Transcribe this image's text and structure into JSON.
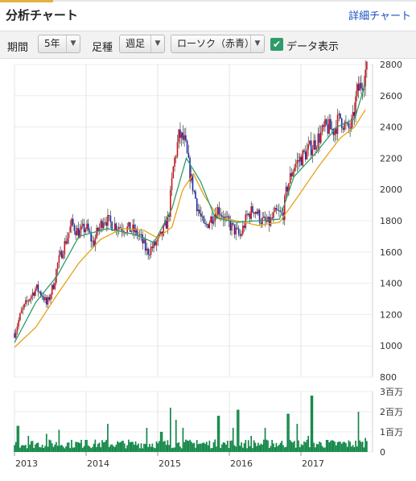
{
  "header": {
    "title": "分析チャート",
    "detail_link": "詳細チャート"
  },
  "toolbar": {
    "period_label": "期間",
    "period_value": "5年",
    "foot_label": "足種",
    "foot_value": "週足",
    "candle_value": "ローソク（赤青）",
    "data_display_label": "データ表示",
    "data_display_checked": true
  },
  "icons": {
    "dropdown": "chevron-down-icon",
    "checkbox": "checkmark-icon"
  },
  "colors": {
    "up_candle": "#d0131b",
    "down_candle": "#1a2ba8",
    "ma_short": "#2e9c6a",
    "ma_long": "#e3a31b",
    "volume": "#15884a"
  },
  "chart_data": [
    {
      "type": "candlestick",
      "title": "",
      "x_ticks": [
        "2013",
        "2014",
        "2015",
        "2016",
        "2017"
      ],
      "ylim": [
        800,
        2800
      ],
      "y_ticks": [
        "2800",
        "2600",
        "2400",
        "2200",
        "2000",
        "1800",
        "1600",
        "1400",
        "1200",
        "1000",
        "800"
      ],
      "close": [
        [
          2013.0,
          1080
        ],
        [
          2013.1,
          1220
        ],
        [
          2013.2,
          1300
        ],
        [
          2013.3,
          1370
        ],
        [
          2013.4,
          1320
        ],
        [
          2013.45,
          1260
        ],
        [
          2013.55,
          1400
        ],
        [
          2013.6,
          1520
        ],
        [
          2013.7,
          1650
        ],
        [
          2013.8,
          1780
        ],
        [
          2013.9,
          1720
        ],
        [
          2014.0,
          1760
        ],
        [
          2014.1,
          1650
        ],
        [
          2014.15,
          1720
        ],
        [
          2014.25,
          1820
        ],
        [
          2014.35,
          1780
        ],
        [
          2014.5,
          1760
        ],
        [
          2014.65,
          1740
        ],
        [
          2014.75,
          1700
        ],
        [
          2014.85,
          1600
        ],
        [
          2014.95,
          1640
        ],
        [
          2015.05,
          1700
        ],
        [
          2015.15,
          1820
        ],
        [
          2015.22,
          2150
        ],
        [
          2015.3,
          2350
        ],
        [
          2015.38,
          2300
        ],
        [
          2015.45,
          2100
        ],
        [
          2015.55,
          1900
        ],
        [
          2015.65,
          1750
        ],
        [
          2015.75,
          1820
        ],
        [
          2015.85,
          1880
        ],
        [
          2015.95,
          1800
        ],
        [
          2016.05,
          1750
        ],
        [
          2016.15,
          1700
        ],
        [
          2016.25,
          1830
        ],
        [
          2016.35,
          1880
        ],
        [
          2016.45,
          1800
        ],
        [
          2016.55,
          1780
        ],
        [
          2016.65,
          1850
        ],
        [
          2016.75,
          1840
        ],
        [
          2016.8,
          2000
        ],
        [
          2016.9,
          2150
        ],
        [
          2017.0,
          2200
        ],
        [
          2017.1,
          2250
        ],
        [
          2017.2,
          2300
        ],
        [
          2017.35,
          2400
        ],
        [
          2017.45,
          2380
        ],
        [
          2017.55,
          2460
        ],
        [
          2017.65,
          2380
        ],
        [
          2017.72,
          2420
        ],
        [
          2017.78,
          2620
        ],
        [
          2017.85,
          2680
        ],
        [
          2017.9,
          2760
        ]
      ],
      "ma_short": [
        [
          2013.0,
          1020
        ],
        [
          2013.3,
          1280
        ],
        [
          2013.6,
          1450
        ],
        [
          2013.9,
          1700
        ],
        [
          2014.3,
          1750
        ],
        [
          2014.7,
          1710
        ],
        [
          2014.95,
          1660
        ],
        [
          2015.2,
          1880
        ],
        [
          2015.4,
          2200
        ],
        [
          2015.6,
          2050
        ],
        [
          2015.8,
          1820
        ],
        [
          2016.1,
          1790
        ],
        [
          2016.4,
          1800
        ],
        [
          2016.7,
          1810
        ],
        [
          2016.9,
          2080
        ],
        [
          2017.2,
          2230
        ],
        [
          2017.5,
          2400
        ],
        [
          2017.75,
          2450
        ],
        [
          2017.9,
          2680
        ]
      ],
      "ma_long": [
        [
          2013.0,
          990
        ],
        [
          2013.3,
          1120
        ],
        [
          2013.6,
          1330
        ],
        [
          2013.9,
          1530
        ],
        [
          2014.2,
          1680
        ],
        [
          2014.5,
          1750
        ],
        [
          2014.8,
          1740
        ],
        [
          2015.0,
          1690
        ],
        [
          2015.2,
          1760
        ],
        [
          2015.35,
          2000
        ],
        [
          2015.5,
          2100
        ],
        [
          2015.65,
          1960
        ],
        [
          2015.85,
          1820
        ],
        [
          2016.1,
          1800
        ],
        [
          2016.4,
          1770
        ],
        [
          2016.7,
          1790
        ],
        [
          2016.95,
          1950
        ],
        [
          2017.25,
          2150
        ],
        [
          2017.55,
          2330
        ],
        [
          2017.75,
          2400
        ],
        [
          2017.9,
          2510
        ]
      ]
    },
    {
      "type": "bar",
      "title": "",
      "ylim": [
        0,
        3
      ],
      "y_ticks": [
        "3百万",
        "2百万",
        "1百万",
        "0"
      ],
      "volume_peaks": [
        [
          2013.05,
          1.3
        ],
        [
          2013.2,
          0.8
        ],
        [
          2013.45,
          0.9
        ],
        [
          2013.62,
          1.1
        ],
        [
          2014.0,
          0.6
        ],
        [
          2014.3,
          1.4
        ],
        [
          2014.65,
          0.5
        ],
        [
          2014.85,
          1.2
        ],
        [
          2015.05,
          1.0
        ],
        [
          2015.18,
          2.2
        ],
        [
          2015.25,
          1.6
        ],
        [
          2015.35,
          1.2
        ],
        [
          2015.55,
          0.6
        ],
        [
          2015.85,
          1.8
        ],
        [
          2016.05,
          1.2
        ],
        [
          2016.12,
          2.1
        ],
        [
          2016.3,
          0.8
        ],
        [
          2016.5,
          1.2
        ],
        [
          2016.6,
          0.6
        ],
        [
          2016.82,
          1.9
        ],
        [
          2016.95,
          1.4
        ],
        [
          2017.1,
          0.8
        ],
        [
          2017.15,
          2.8
        ],
        [
          2017.35,
          0.6
        ],
        [
          2017.6,
          0.5
        ],
        [
          2017.8,
          2.0
        ],
        [
          2017.9,
          0.7
        ]
      ]
    }
  ]
}
